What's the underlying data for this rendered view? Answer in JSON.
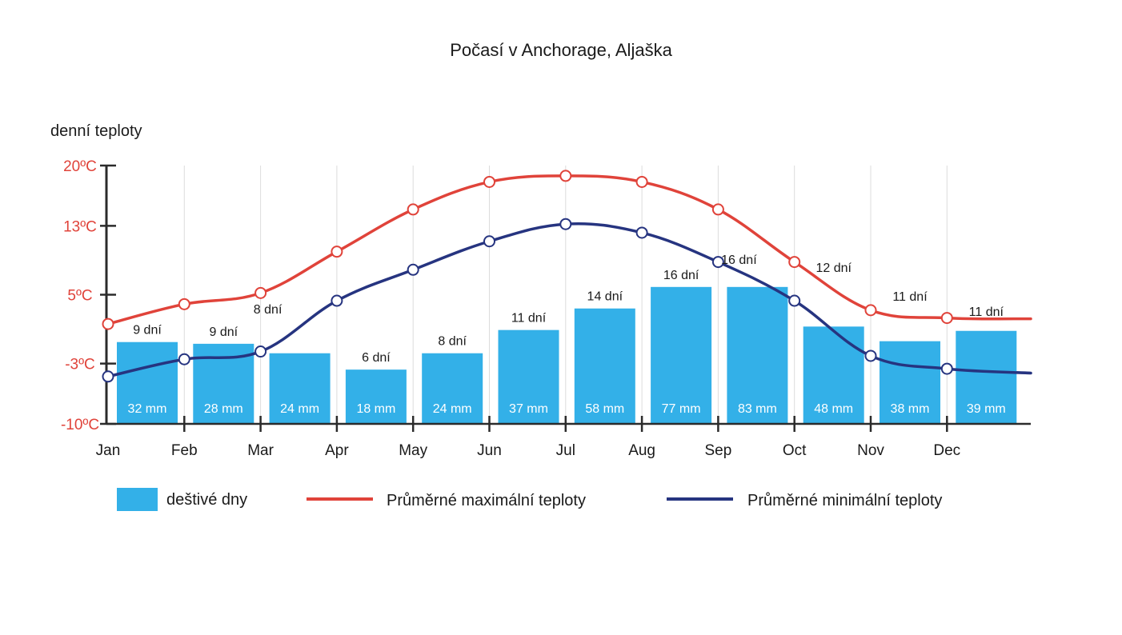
{
  "chart_data": {
    "type": "bar",
    "title": "Počasí v Anchorage, Aljaška",
    "ylabel": "denní teploty",
    "ylim": [
      -10,
      20
    ],
    "yticks": [
      "20ºC",
      "13ºC",
      "5ºC",
      "-3ºC",
      "-10ºC"
    ],
    "ytick_values": [
      20,
      13,
      5,
      -3,
      -10
    ],
    "categories": [
      "Jan",
      "Feb",
      "Mar",
      "Apr",
      "May",
      "Jun",
      "Jul",
      "Aug",
      "Sep",
      "Oct",
      "Nov",
      "Dec"
    ],
    "grid": "vertical",
    "legend_position": "bottom",
    "series": [
      {
        "name": "deštivé dny",
        "kind": "bar",
        "color": "#33b0e8",
        "values": [
          -0.5,
          -0.7,
          -1.8,
          -3.7,
          -1.8,
          0.9,
          3.4,
          5.9,
          5.9,
          1.3,
          -0.4,
          0.8
        ],
        "precipitation_labels": [
          "32 mm",
          "28 mm",
          "24 mm",
          "18 mm",
          "24 mm",
          "37 mm",
          "58 mm",
          "77 mm",
          "83 mm",
          "48 mm",
          "38 mm",
          "39 mm"
        ],
        "rainy_day_labels": [
          "9 dní",
          "9 dní",
          "8 dní",
          "6 dní",
          "8 dní",
          "11 dní",
          "14 dní",
          "16 dní",
          "16 dní",
          "12 dní",
          "11 dní",
          "11 dní"
        ]
      },
      {
        "name": "Průměrné maximální teploty",
        "kind": "line",
        "color": "#e0433a",
        "values": [
          1.6,
          3.9,
          5.2,
          10.0,
          14.9,
          18.1,
          18.8,
          18.1,
          14.9,
          8.8,
          3.2,
          2.3
        ],
        "tail_value": 2.2
      },
      {
        "name": "Průměrné minimální teploty",
        "kind": "line",
        "color": "#263480",
        "values": [
          -4.5,
          -2.5,
          -1.6,
          4.3,
          7.9,
          11.2,
          13.2,
          12.2,
          8.8,
          4.3,
          -2.1,
          -3.6
        ],
        "tail_value": -4.1
      }
    ],
    "legend": [
      "deštivé dny",
      "Průměrné maximální teploty",
      "Průměrné minimální teploty"
    ]
  }
}
